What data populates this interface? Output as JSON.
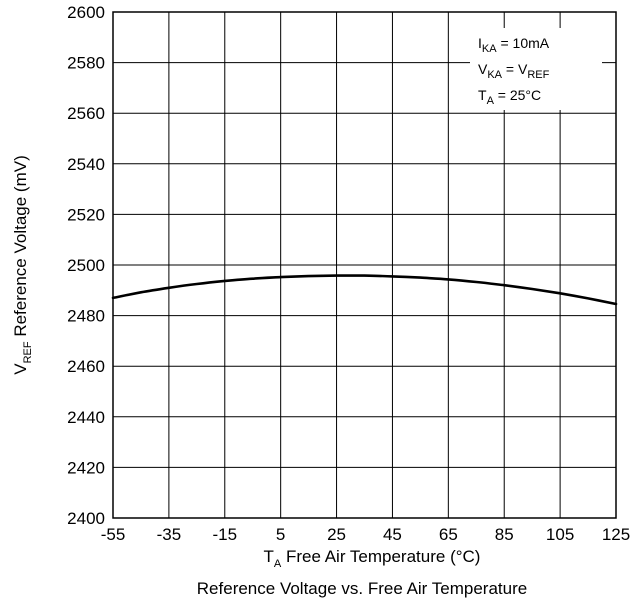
{
  "chart_data": {
    "type": "line",
    "caption": "Reference Voltage vs. Free Air Temperature",
    "xlabel": {
      "main": "T",
      "sub": "A",
      "rest": " Free Air Temperature (°C)"
    },
    "ylabel": {
      "main": "V",
      "sub": "REF",
      "rest": " Reference Voltage (mV)"
    },
    "xlim": [
      -55,
      125
    ],
    "ylim": [
      2400,
      2600
    ],
    "xticks": [
      -55,
      -35,
      -15,
      5,
      25,
      45,
      65,
      85,
      105,
      125
    ],
    "yticks": [
      2400,
      2420,
      2440,
      2460,
      2480,
      2500,
      2520,
      2540,
      2560,
      2580,
      2600
    ],
    "grid": true,
    "conditions": [
      {
        "main": "I",
        "sub": "KA",
        "rest": " = 10mA"
      },
      {
        "main": "V",
        "sub": "KA",
        "rest": " = V",
        "sub2": "REF"
      },
      {
        "main": "T",
        "sub": "A",
        "rest": " = 25°C"
      }
    ],
    "series": [
      {
        "x": [
          -55,
          -45,
          -35,
          -25,
          -15,
          -5,
          5,
          15,
          25,
          35,
          45,
          55,
          65,
          75,
          85,
          95,
          105,
          115,
          125
        ],
        "y": [
          2487.0,
          2489.2,
          2491.0,
          2492.5,
          2493.7,
          2494.6,
          2495.2,
          2495.6,
          2495.8,
          2495.8,
          2495.5,
          2495.0,
          2494.3,
          2493.3,
          2492.0,
          2490.5,
          2488.8,
          2486.8,
          2484.6
        ]
      }
    ]
  }
}
